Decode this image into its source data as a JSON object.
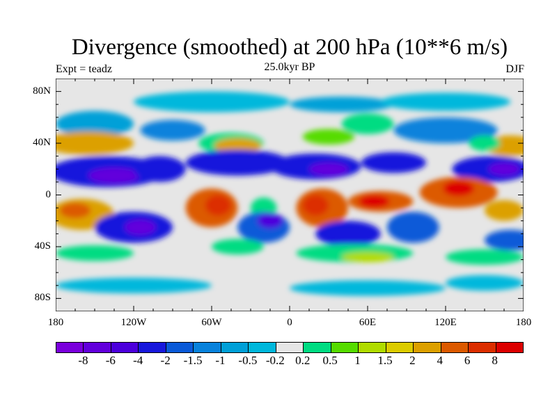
{
  "title": "Divergence (smoothed) at 200 hPa (10**6 m/s)",
  "left_subtitle": "Expt = teadz",
  "center_subtitle": "25.0kyr BP",
  "right_subtitle": "DJF",
  "y_ticks": [
    "80N",
    "40N",
    "0",
    "40S",
    "80S"
  ],
  "y_tick_values": [
    80,
    40,
    0,
    -40,
    -80
  ],
  "x_ticks": [
    "180",
    "120W",
    "60W",
    "0",
    "60E",
    "120E",
    "180"
  ],
  "x_tick_values": [
    -180,
    -120,
    -60,
    0,
    60,
    120,
    180
  ],
  "colorbar": {
    "colors": [
      "#7a00dc",
      "#6200dc",
      "#4c00dc",
      "#1818dc",
      "#0a5ad8",
      "#0882dc",
      "#00a0d8",
      "#00b8dc",
      "#e6e6e6",
      "#00dc82",
      "#56dc00",
      "#b0dc00",
      "#dccc00",
      "#dca000",
      "#dc5a00",
      "#dc2e00",
      "#dc0000"
    ],
    "labels": [
      "-8",
      "-6",
      "-4",
      "-2",
      "-1.5",
      "-1",
      "-0.5",
      "-0.2",
      "0.2",
      "0.5",
      "1",
      "1.5",
      "2",
      "4",
      "6",
      "8"
    ]
  }
}
